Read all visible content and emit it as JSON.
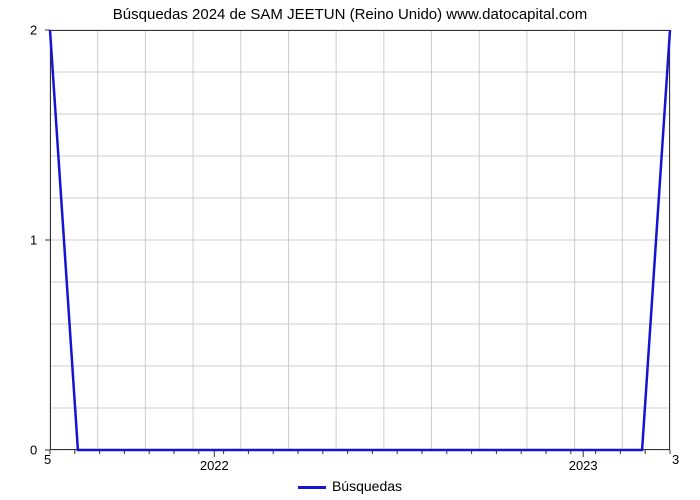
{
  "chart": {
    "type": "line",
    "title": "Búsquedas 2024 de SAM JEETUN (Reino Unido) www.datocapital.com",
    "series": {
      "label": "Búsquedas",
      "color": "#1414d2",
      "line_width": 2.5,
      "x": [
        0,
        0.045,
        0.955,
        1.0
      ],
      "y": [
        2,
        0,
        0,
        2
      ]
    },
    "x_axis": {
      "ticks_minor_count": 25,
      "major_ticks": [
        {
          "pos": 0.265,
          "label": "2022"
        },
        {
          "pos": 0.86,
          "label": "2023"
        }
      ],
      "corner_left": "5",
      "corner_right": "3"
    },
    "y_axis": {
      "min": 0,
      "max": 2,
      "ticks": [
        {
          "value": 0,
          "label": "0"
        },
        {
          "value": 1,
          "label": "1"
        },
        {
          "value": 2,
          "label": "2"
        }
      ],
      "minor_per_major": 5
    },
    "grid": {
      "color": "#cccccc",
      "width": 1,
      "vertical_major_count": 13,
      "show_horiz_minor": true
    },
    "background_color": "#ffffff",
    "title_fontsize": 15,
    "label_fontsize": 13,
    "plot_border_color": "#333333"
  }
}
